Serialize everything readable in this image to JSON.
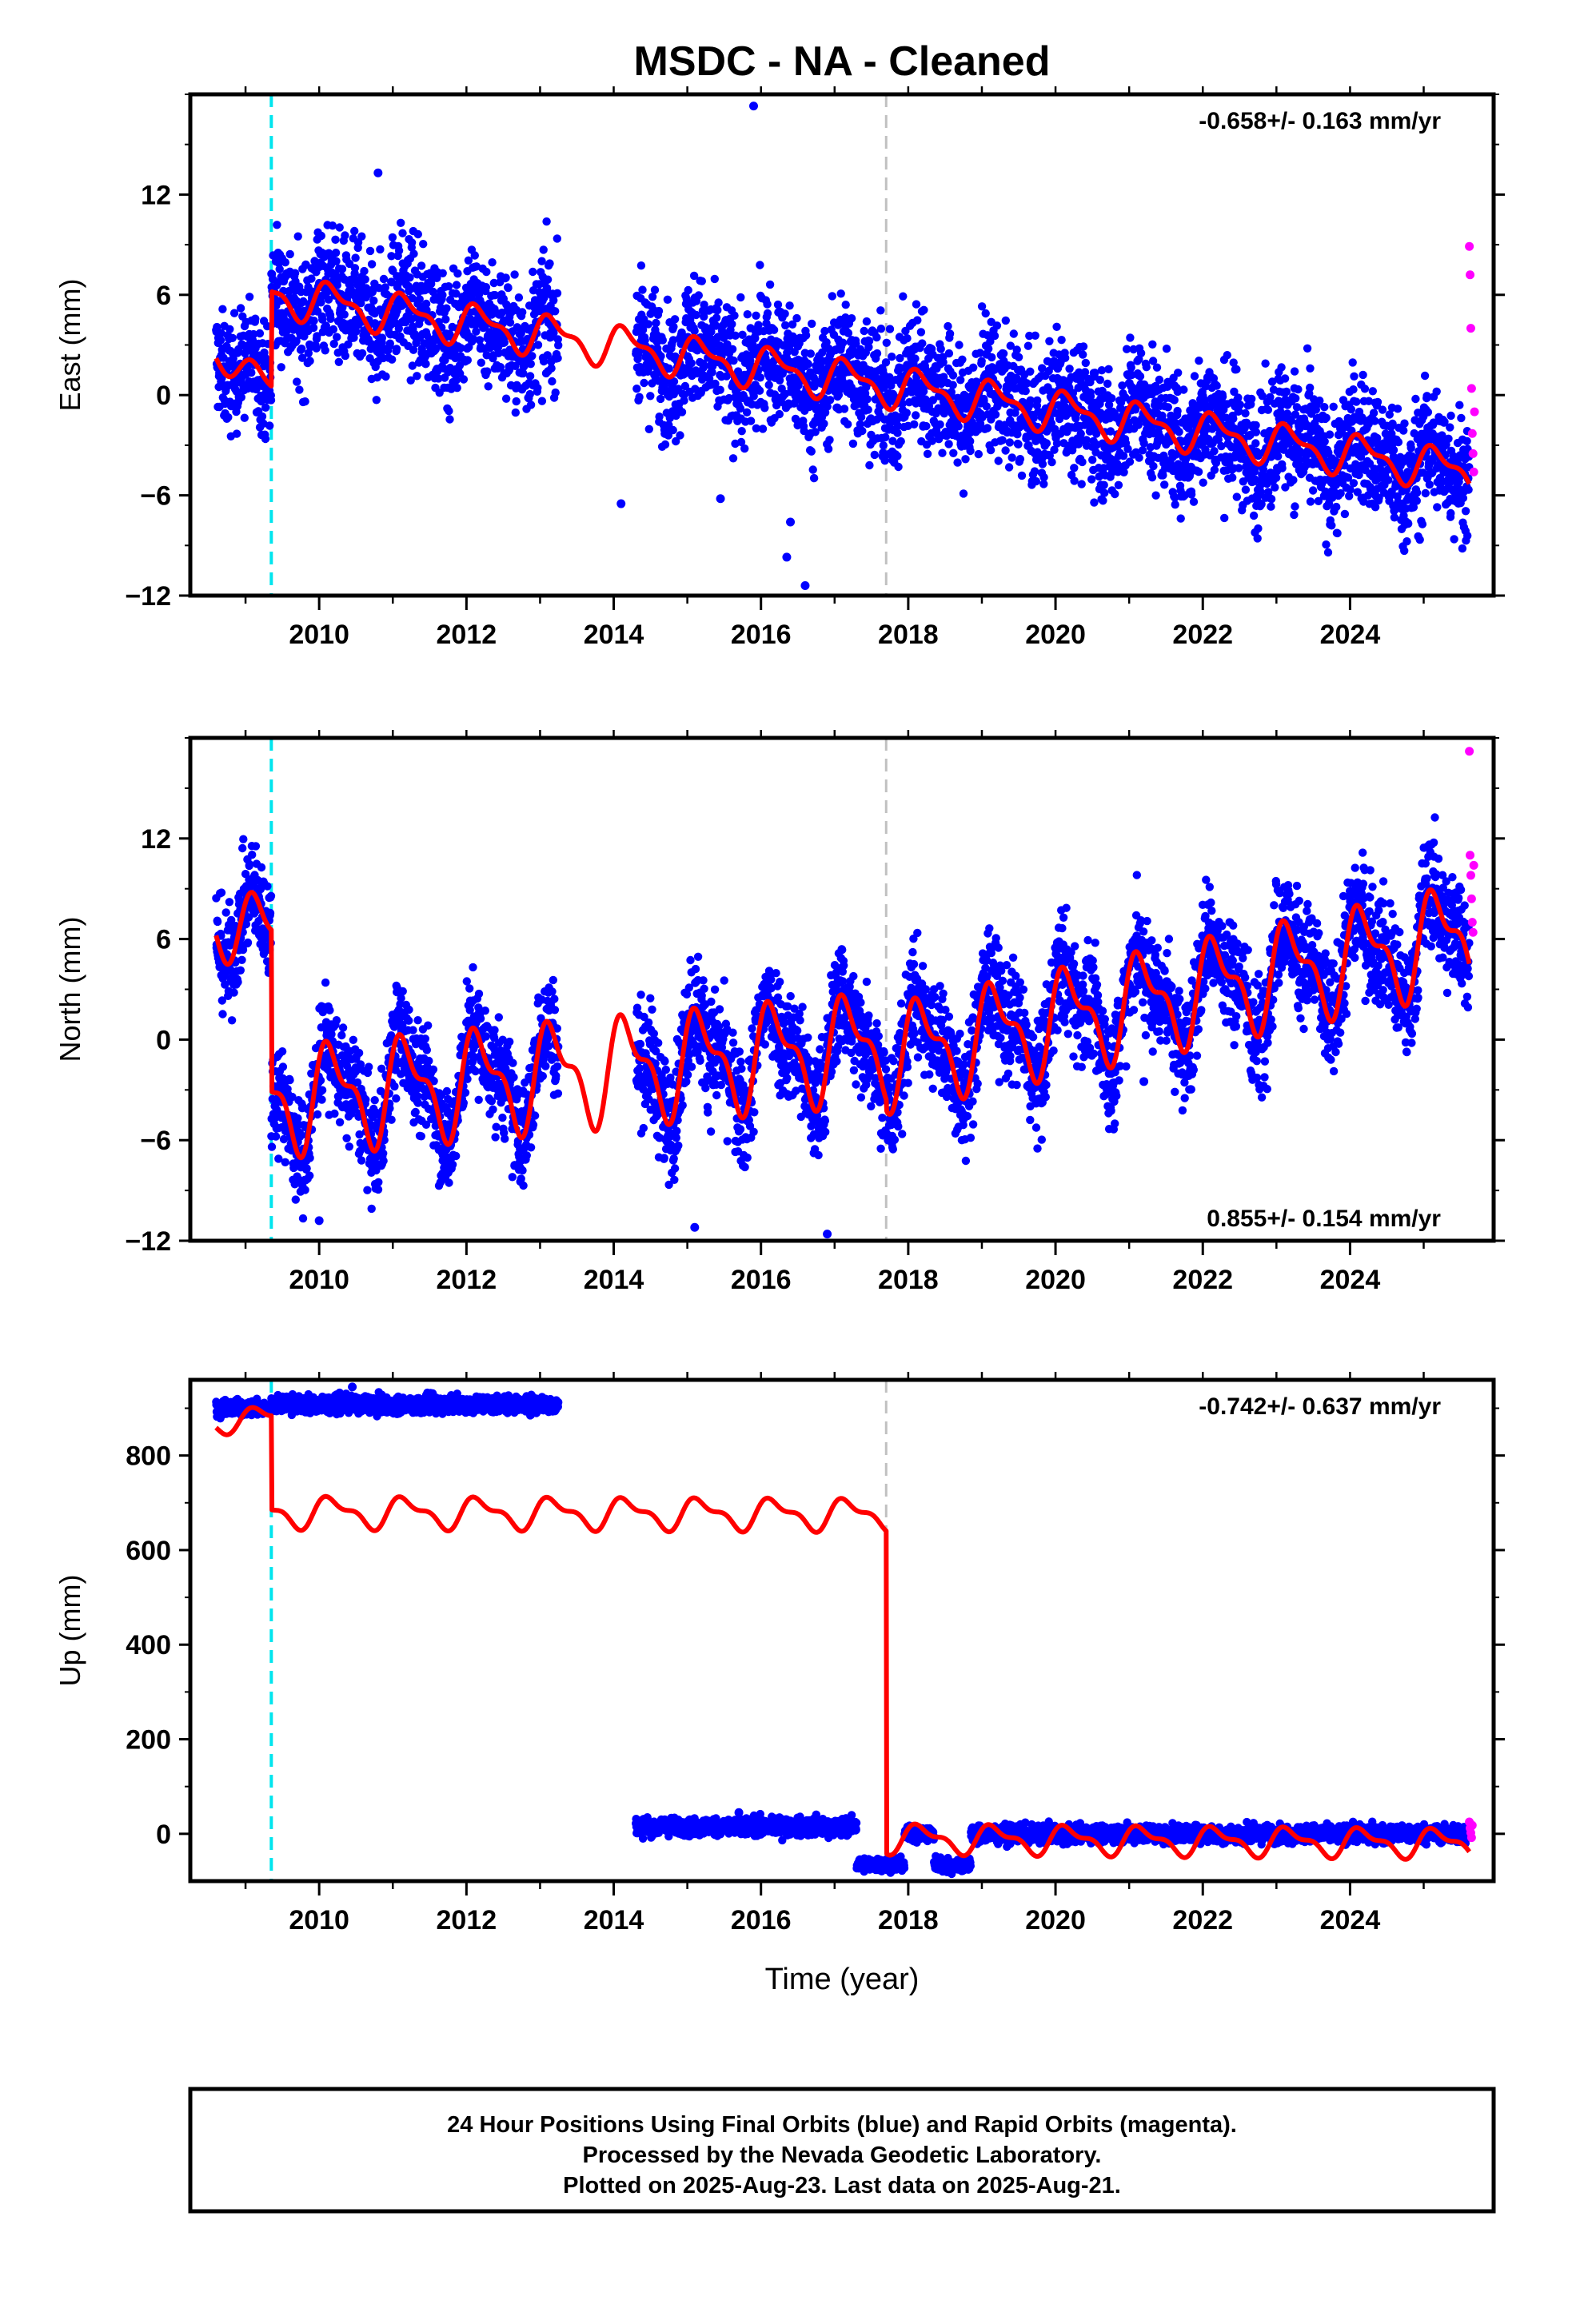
{
  "title": "MSDC  - NA - Cleaned",
  "xlabel": "Time (year)",
  "footer": {
    "line1": "24 Hour Positions Using Final Orbits (blue) and Rapid Orbits (magenta).",
    "line2": "Processed by the Nevada Geodetic Laboratory.",
    "line3": "Plotted on 2025-Aug-23. Last data on 2025-Aug-21."
  },
  "colors": {
    "final": "#0000ff",
    "rapid": "#ff00ff",
    "model": "#ff0000",
    "equipment_change": "#00e5ee",
    "other_event": "#c0c0c0"
  },
  "chart_data": [
    {
      "type": "scatter",
      "component": "east",
      "ylabel": "East (mm)",
      "rate": "-0.658+/- 0.163 mm/yr",
      "rate_position": "top-right",
      "xlim": [
        2008.25,
        2025.95
      ],
      "ylim": [
        -12,
        18
      ],
      "yticks": [
        -12,
        -6,
        0,
        6,
        12
      ],
      "xticks": [
        2010,
        2012,
        2014,
        2016,
        2018,
        2020,
        2022,
        2024
      ],
      "event_lines": [
        {
          "x": 2009.35,
          "kind": "equipment_change"
        },
        {
          "x": 2017.7,
          "kind": "other_event"
        }
      ],
      "trend_segments": [
        {
          "x0": 2008.6,
          "x1": 2009.35,
          "y0": 2.6,
          "y1": 0.4,
          "amp": 1.0
        },
        {
          "x0": 2009.35,
          "x1": 2025.62,
          "y0": 6.0,
          "y1": -4.6,
          "amp": 1.4
        }
      ],
      "final_data_spans": [
        {
          "x0": 2008.6,
          "x1": 2009.35,
          "noise": 1.6
        },
        {
          "x0": 2009.35,
          "x1": 2013.25,
          "noise": 1.9
        },
        {
          "x0": 2014.3,
          "x1": 2025.62,
          "noise": 1.9
        }
      ],
      "final_outliers": [
        {
          "x": 2010.8,
          "y": 13.3
        },
        {
          "x": 2015.9,
          "y": 17.3
        },
        {
          "x": 2014.1,
          "y": -6.5
        },
        {
          "x": 2016.35,
          "y": -9.7
        },
        {
          "x": 2016.6,
          "y": -11.4
        },
        {
          "x": 2016.4,
          "y": -7.6
        },
        {
          "x": 2015.45,
          "y": -6.2
        }
      ],
      "rapid_points": [
        {
          "x": 2025.62,
          "y": 8.9
        },
        {
          "x": 2025.63,
          "y": 7.2
        },
        {
          "x": 2025.64,
          "y": 4.0
        },
        {
          "x": 2025.65,
          "y": 0.4
        },
        {
          "x": 2025.66,
          "y": -2.3
        },
        {
          "x": 2025.67,
          "y": -3.5
        },
        {
          "x": 2025.68,
          "y": -4.6
        },
        {
          "x": 2025.69,
          "y": -1.0
        }
      ]
    },
    {
      "type": "scatter",
      "component": "north",
      "ylabel": "North (mm)",
      "rate": "0.855+/- 0.154 mm/yr",
      "rate_position": "bottom-right",
      "xlim": [
        2008.25,
        2025.95
      ],
      "ylim": [
        -12,
        18
      ],
      "yticks": [
        -12,
        -6,
        0,
        6,
        12
      ],
      "xticks": [
        2010,
        2012,
        2014,
        2016,
        2018,
        2020,
        2022,
        2024
      ],
      "event_lines": [
        {
          "x": 2009.35,
          "kind": "equipment_change"
        },
        {
          "x": 2017.7,
          "kind": "other_event"
        }
      ],
      "trend_segments": [
        {
          "x0": 2008.6,
          "x1": 2009.35,
          "y0": 7.2,
          "y1": 6.2,
          "amp": 2.5
        },
        {
          "x0": 2009.35,
          "x1": 2017.7,
          "y0": -3.6,
          "y1": -0.3,
          "amp": 3.6
        },
        {
          "x0": 2017.7,
          "x1": 2025.62,
          "y0": -1.0,
          "y1": 6.3,
          "amp": 3.5
        }
      ],
      "final_data_spans": [
        {
          "x0": 2008.6,
          "x1": 2009.35,
          "noise": 1.5
        },
        {
          "x0": 2009.35,
          "x1": 2013.25,
          "noise": 1.6
        },
        {
          "x0": 2014.3,
          "x1": 2025.62,
          "noise": 1.7
        }
      ],
      "final_outliers": [
        {
          "x": 2010.0,
          "y": -10.8
        },
        {
          "x": 2015.1,
          "y": -11.2
        },
        {
          "x": 2016.9,
          "y": -11.6
        },
        {
          "x": 2021.2,
          "y": -2.5
        }
      ],
      "rapid_points": [
        {
          "x": 2025.62,
          "y": 17.2
        },
        {
          "x": 2025.63,
          "y": 11.0
        },
        {
          "x": 2025.64,
          "y": 9.8
        },
        {
          "x": 2025.65,
          "y": 8.4
        },
        {
          "x": 2025.66,
          "y": 7.0
        },
        {
          "x": 2025.67,
          "y": 6.4
        },
        {
          "x": 2025.68,
          "y": 10.4
        }
      ]
    },
    {
      "type": "scatter",
      "component": "up",
      "ylabel": "Up (mm)",
      "rate": "-0.742+/- 0.637 mm/yr",
      "rate_position": "top-right",
      "xlim": [
        2008.25,
        2025.95
      ],
      "ylim": [
        -100,
        960
      ],
      "yticks": [
        0,
        200,
        400,
        600,
        800
      ],
      "xticks": [
        2010,
        2012,
        2014,
        2016,
        2018,
        2020,
        2022,
        2024
      ],
      "event_lines": [
        {
          "x": 2009.35,
          "kind": "equipment_change"
        },
        {
          "x": 2017.7,
          "kind": "other_event"
        }
      ],
      "trend_segments": [
        {
          "x0": 2008.6,
          "x1": 2009.35,
          "y0": 870,
          "y1": 880,
          "amp": 28
        },
        {
          "x0": 2009.35,
          "x1": 2017.7,
          "y0": 680,
          "y1": 675,
          "amp": 38
        },
        {
          "x0": 2017.7,
          "x1": 2025.62,
          "y0": -10,
          "y1": -20,
          "amp": 35
        }
      ],
      "final_data_spans": [
        {
          "x0": 2008.6,
          "x1": 2009.35,
          "y": 900,
          "noise": 8
        },
        {
          "x0": 2009.35,
          "x1": 2013.25,
          "y": 908,
          "noise": 9
        },
        {
          "x0": 2014.3,
          "x1": 2017.3,
          "y": 15,
          "noise": 9
        },
        {
          "x0": 2017.3,
          "x1": 2017.95,
          "y": -65,
          "noise": 7
        },
        {
          "x0": 2017.95,
          "x1": 2018.35,
          "y": 0,
          "noise": 8
        },
        {
          "x0": 2018.35,
          "x1": 2018.85,
          "y": -65,
          "noise": 7
        },
        {
          "x0": 2018.85,
          "x1": 2025.62,
          "y": 0,
          "noise": 9
        }
      ],
      "final_outliers": [
        {
          "x": 2010.45,
          "y": 945
        },
        {
          "x": 2015.7,
          "y": 45
        }
      ],
      "rapid_points": [
        {
          "x": 2025.62,
          "y": 25
        },
        {
          "x": 2025.63,
          "y": 12
        },
        {
          "x": 2025.64,
          "y": 2
        },
        {
          "x": 2025.65,
          "y": -8
        },
        {
          "x": 2025.66,
          "y": 18
        }
      ]
    }
  ]
}
